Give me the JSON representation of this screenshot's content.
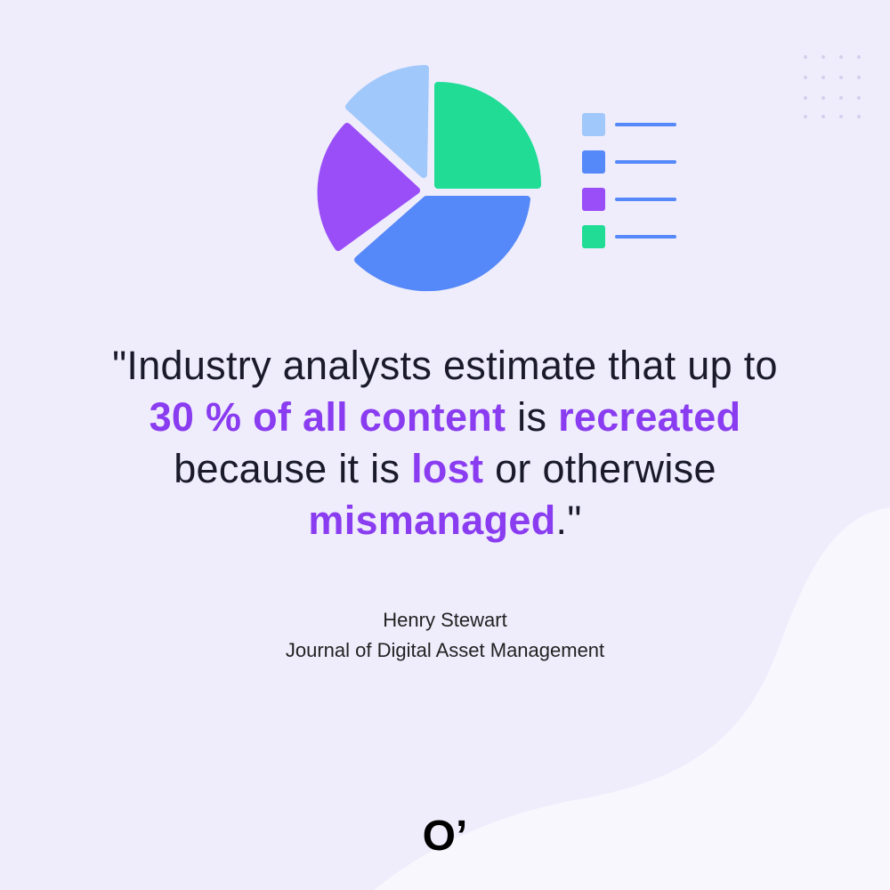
{
  "quote": {
    "lines": [
      [
        {
          "text": "\"Industry analysts estimate that up to",
          "emphasis": false
        }
      ],
      [
        {
          "text": "30 % of all content",
          "emphasis": true
        },
        {
          "text": " is ",
          "emphasis": false
        },
        {
          "text": "recreated",
          "emphasis": true
        }
      ],
      [
        {
          "text": "because it is ",
          "emphasis": false
        },
        {
          "text": "lost",
          "emphasis": true
        },
        {
          "text": " or otherwise",
          "emphasis": false
        }
      ],
      [
        {
          "text": "mismanaged",
          "emphasis": true
        },
        {
          "text": ".\"",
          "emphasis": false
        }
      ]
    ]
  },
  "attribution": {
    "author": "Henry Stewart",
    "source": "Journal of Digital Asset Management"
  },
  "logo": "O’"
}
